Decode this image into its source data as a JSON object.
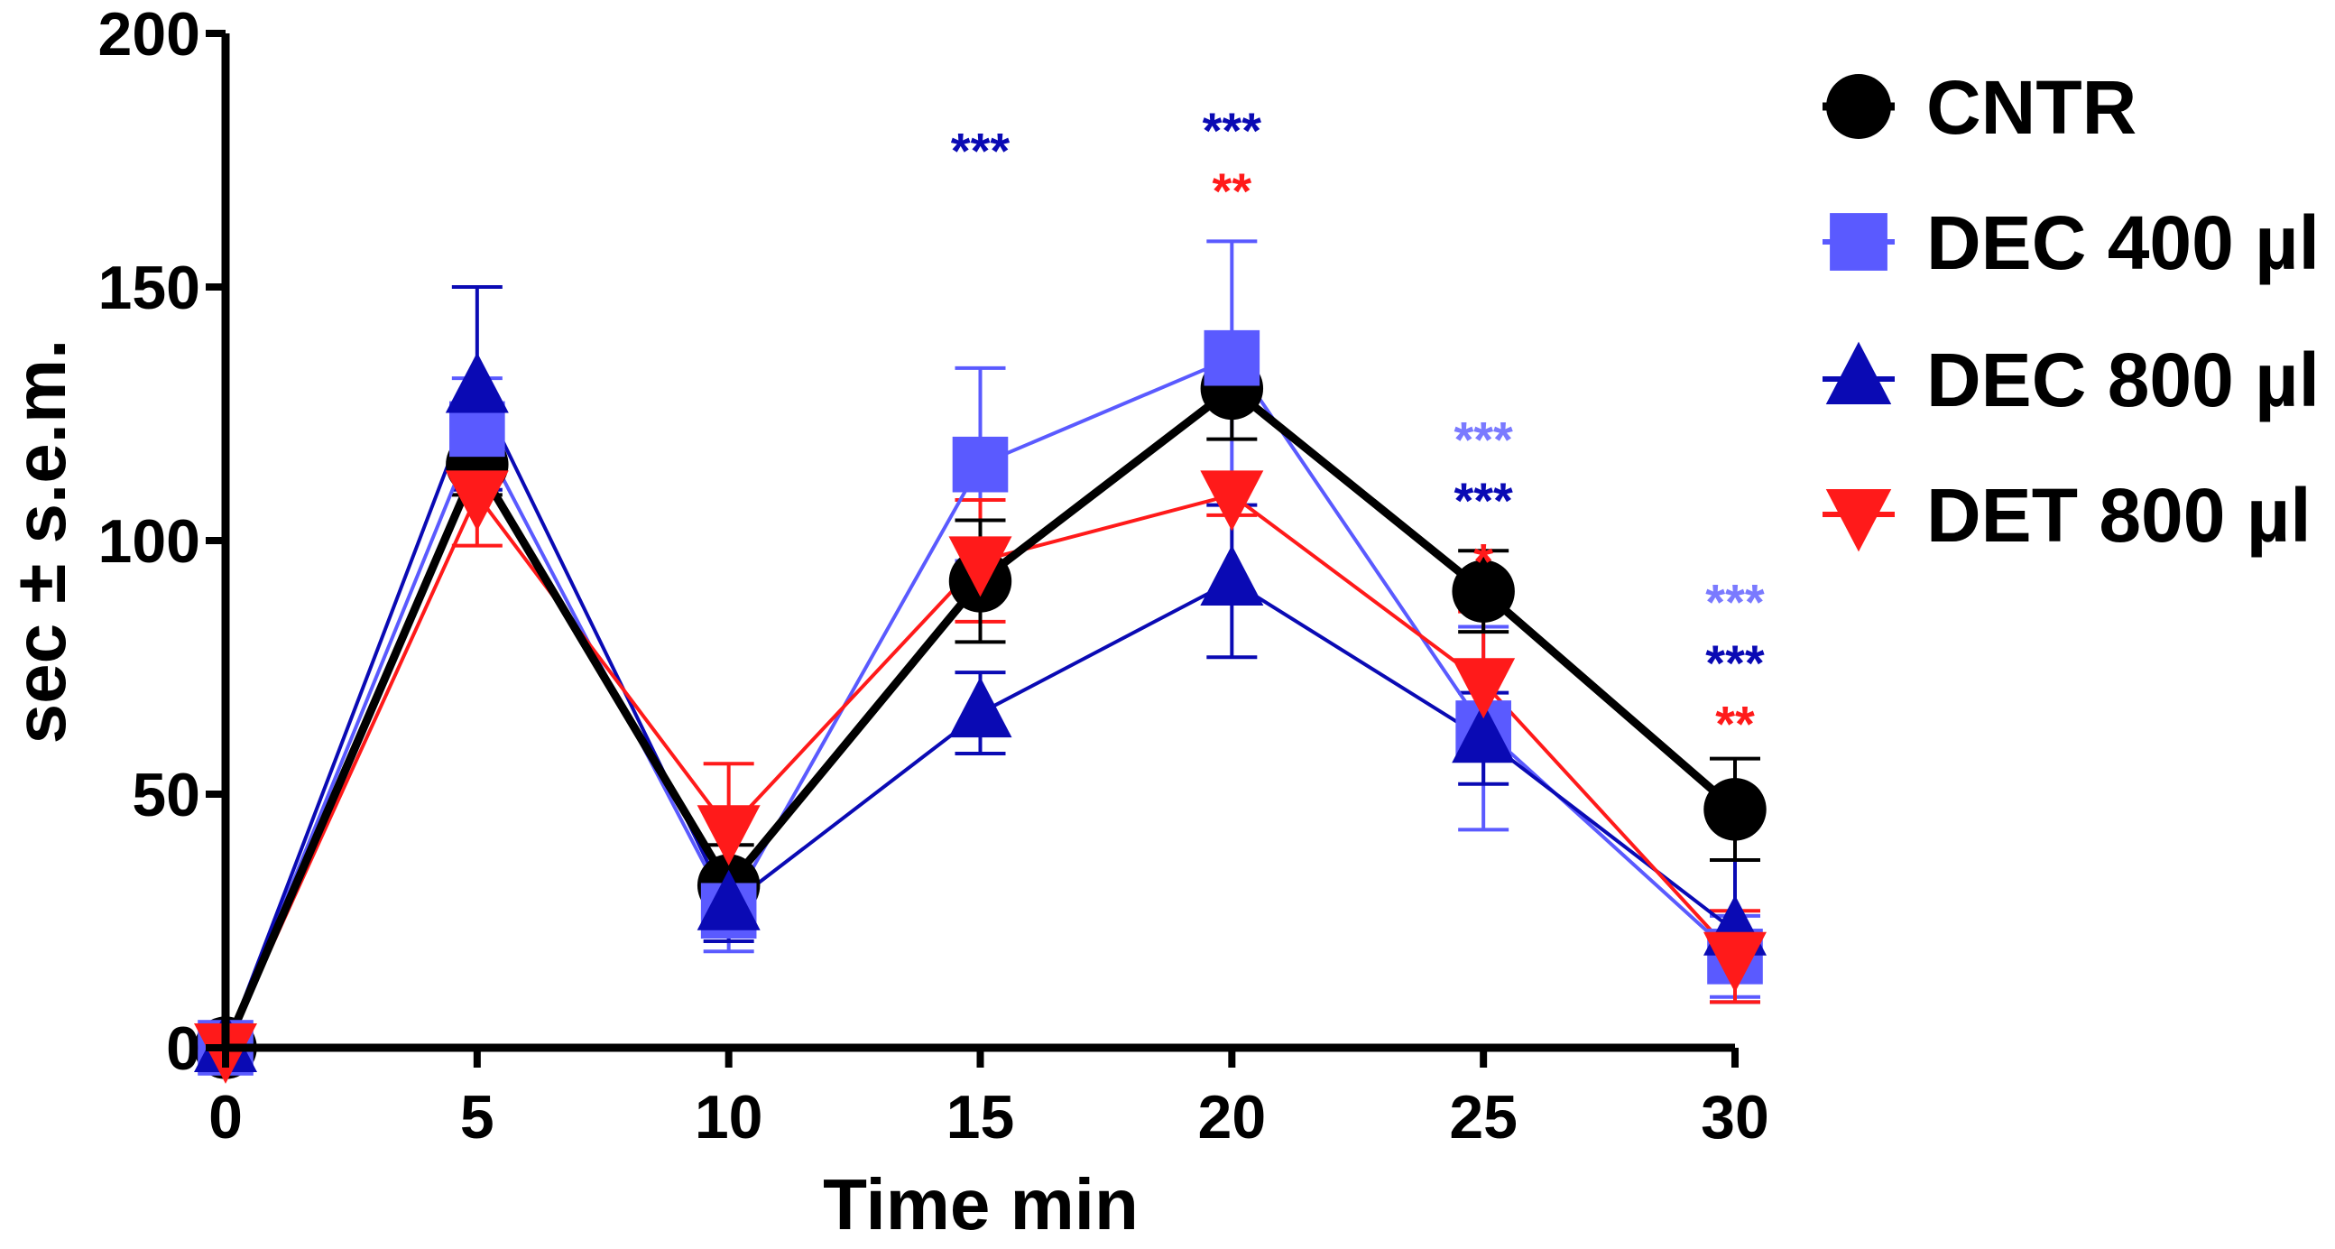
{
  "chart_data": {
    "type": "line",
    "title": "",
    "xlabel": "Time min",
    "ylabel": "sec ± s.e.m.",
    "xlim": [
      0,
      30
    ],
    "ylim": [
      0,
      200
    ],
    "x": [
      0,
      5,
      10,
      15,
      20,
      25,
      30
    ],
    "x_tick_labels": [
      "0",
      "5",
      "10",
      "15",
      "20",
      "25",
      "30"
    ],
    "y_ticks": [
      0,
      50,
      100,
      150,
      200
    ],
    "y_tick_labels": [
      "0",
      "50",
      "100",
      "150",
      "200"
    ],
    "grid": false,
    "legend_position": "right",
    "series": [
      {
        "name": "CNTR",
        "color": "#000000",
        "marker": "circle",
        "values": [
          0,
          115,
          32,
          92,
          130,
          90,
          47
        ],
        "errors": [
          0,
          6,
          8,
          12,
          10,
          8,
          10
        ]
      },
      {
        "name": "DEC 400 µl",
        "color": "#5a5aff",
        "marker": "square",
        "values": [
          0,
          122,
          27,
          115,
          136,
          63,
          18
        ],
        "errors": [
          0,
          10,
          8,
          19,
          23,
          20,
          8
        ]
      },
      {
        "name": "DEC 800 µl",
        "color": "#0a0ab4",
        "marker": "triangle-up",
        "values": [
          0,
          130,
          28,
          66,
          92,
          61,
          23
        ],
        "errors": [
          0,
          20,
          7,
          8,
          15,
          9,
          14
        ]
      },
      {
        "name": "DET 800 µl",
        "color": "#ff1a1a",
        "marker": "triangle-down",
        "values": [
          0,
          109,
          43,
          96,
          109,
          72,
          18
        ],
        "errors": [
          0,
          10,
          13,
          12,
          4,
          14,
          9
        ]
      }
    ],
    "annotations": [
      {
        "x": 15,
        "y": 177,
        "text": "***",
        "color": "#0a0ab4"
      },
      {
        "x": 20,
        "y": 181,
        "text": "***",
        "color": "#0a0ab4"
      },
      {
        "x": 20,
        "y": 169,
        "text": "**",
        "color": "#ff1a1a"
      },
      {
        "x": 25,
        "y": 120,
        "text": "***",
        "color": "#7a7aff"
      },
      {
        "x": 25,
        "y": 108,
        "text": "***",
        "color": "#0a0ab4"
      },
      {
        "x": 25,
        "y": 96,
        "text": "*",
        "color": "#ff1a1a"
      },
      {
        "x": 30,
        "y": 88,
        "text": "***",
        "color": "#7a7aff"
      },
      {
        "x": 30,
        "y": 76,
        "text": "***",
        "color": "#0a0ab4"
      },
      {
        "x": 30,
        "y": 64,
        "text": "**",
        "color": "#ff1a1a"
      }
    ]
  }
}
